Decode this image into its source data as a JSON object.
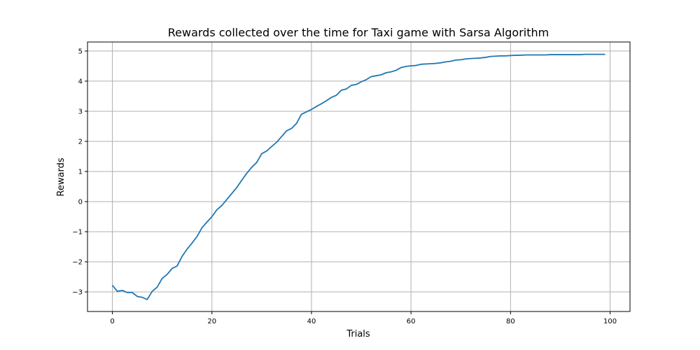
{
  "chart_data": {
    "type": "line",
    "title": "Rewards collected over the time for Taxi game with Sarsa Algorithm",
    "xlabel": "Trials",
    "ylabel": "Rewards",
    "xlim": [
      -5,
      104
    ],
    "ylim": [
      -3.65,
      5.3
    ],
    "xticks": [
      0,
      20,
      40,
      60,
      80,
      100
    ],
    "yticks": [
      -3,
      -2,
      -1,
      0,
      1,
      2,
      3,
      4,
      5
    ],
    "grid": true,
    "line_color": "#1f77b4",
    "series": [
      {
        "values": [
          -2.78,
          -2.98,
          -2.95,
          -3.02,
          -3.02,
          -3.15,
          -3.18,
          -3.25,
          -2.98,
          -2.84,
          -2.55,
          -2.42,
          -2.22,
          -2.14,
          -1.82,
          -1.58,
          -1.38,
          -1.16,
          -0.87,
          -0.68,
          -0.5,
          -0.27,
          -0.13,
          0.07,
          0.27,
          0.47,
          0.71,
          0.94,
          1.14,
          1.3,
          1.59,
          1.68,
          1.83,
          1.97,
          2.16,
          2.35,
          2.43,
          2.6,
          2.9,
          2.98,
          3.06,
          3.16,
          3.25,
          3.35,
          3.46,
          3.53,
          3.7,
          3.74,
          3.86,
          3.89,
          3.98,
          4.05,
          4.15,
          4.18,
          4.21,
          4.28,
          4.31,
          4.36,
          4.45,
          4.49,
          4.51,
          4.52,
          4.56,
          4.57,
          4.58,
          4.59,
          4.61,
          4.64,
          4.66,
          4.7,
          4.71,
          4.74,
          4.75,
          4.76,
          4.77,
          4.79,
          4.82,
          4.83,
          4.84,
          4.84,
          4.85,
          4.86,
          4.86,
          4.87,
          4.87,
          4.87,
          4.87,
          4.87,
          4.88,
          4.88,
          4.88,
          4.88,
          4.88,
          4.88,
          4.88,
          4.89,
          4.89,
          4.89,
          4.89,
          4.89
        ]
      }
    ]
  }
}
